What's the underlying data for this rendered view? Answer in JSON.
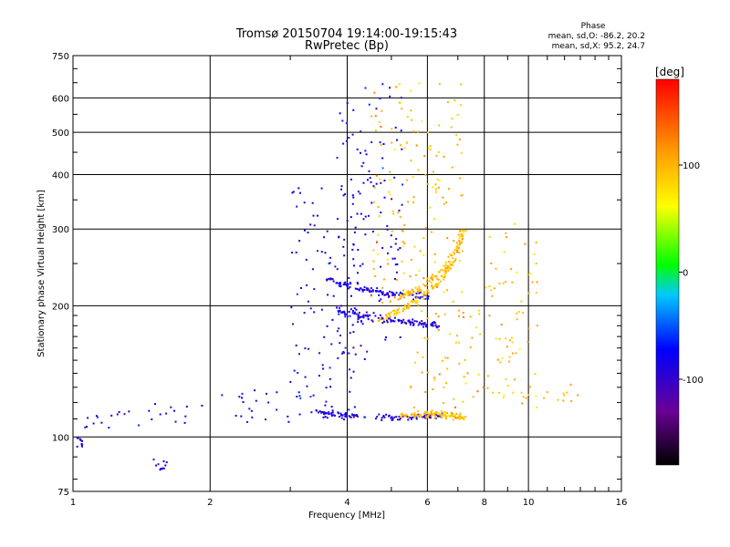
{
  "chart_data": {
    "type": "scatter",
    "title": "Tromsø 20150704 19:14:00-19:15:43",
    "subtitle": "RwPretec (Bp)",
    "xlabel": "Frequency [MHz]",
    "ylabel": "Stationary phase Virtual Height [km]",
    "x_scale": "log",
    "y_scale": "log",
    "xlim": [
      1,
      16
    ],
    "ylim": [
      75,
      750
    ],
    "grid": true,
    "xticks": [
      {
        "value": 1,
        "label": "1"
      },
      {
        "value": 2,
        "label": "2"
      },
      {
        "value": 4,
        "label": "4"
      },
      {
        "value": 6,
        "label": "6"
      },
      {
        "value": 8,
        "label": "8"
      },
      {
        "value": 10,
        "label": "10"
      },
      {
        "value": 16,
        "label": "16"
      }
    ],
    "yticks": [
      {
        "value": 75,
        "label": "75"
      },
      {
        "value": 100,
        "label": "100"
      },
      {
        "value": 200,
        "label": "200"
      },
      {
        "value": 300,
        "label": "300"
      },
      {
        "value": 400,
        "label": "400"
      },
      {
        "value": 500,
        "label": "500"
      },
      {
        "value": 600,
        "label": "600"
      },
      {
        "value": 750,
        "label": "750"
      }
    ],
    "stats": {
      "heading": "Phase",
      "line_o": "mean, sd,O: -86.2, 20.2",
      "line_x": "mean, sd,X:  95.2, 24.7"
    },
    "colorbar": {
      "label": "[deg]",
      "range": [
        -180,
        180
      ],
      "ticks": [
        {
          "value": 100,
          "label": "100"
        },
        {
          "value": 0,
          "label": "0"
        },
        {
          "value": -100,
          "label": "-100"
        }
      ]
    },
    "series": [
      {
        "mode": "O",
        "phase_mean": -86.2,
        "regions": [
          {
            "x": [
              1.0,
              1.3
            ],
            "y": [
              105,
              115
            ]
          },
          {
            "x": [
              1.3,
              2.0
            ],
            "y": [
              106,
              120
            ]
          },
          {
            "x": [
              2.0,
              3.0
            ],
            "y": [
              108,
              130
            ]
          },
          {
            "x": [
              3.0,
              4.3
            ],
            "y": [
              110,
              380
            ]
          },
          {
            "x": [
              3.8,
              5.3
            ],
            "y": [
              150,
              650
            ]
          },
          {
            "x": [
              1.5,
              1.62
            ],
            "y": [
              84,
              90
            ]
          },
          {
            "x": [
              1.02,
              1.05
            ],
            "y": [
              95,
              100
            ]
          }
        ],
        "traces": [
          {
            "x": [
              3.6,
              4.2,
              5.0,
              6.0
            ],
            "y": [
              230,
              220,
              212,
              210
            ]
          },
          {
            "x": [
              3.8,
              4.5,
              5.5,
              6.4
            ],
            "y": [
              195,
              188,
              183,
              180
            ]
          },
          {
            "x": [
              3.4,
              4.0,
              5.0,
              6.5
            ],
            "y": [
              114,
              112,
              111,
              112
            ]
          }
        ]
      },
      {
        "mode": "X",
        "phase_mean": 95.2,
        "regions": [
          {
            "x": [
              4.5,
              7.2
            ],
            "y": [
              200,
              650
            ]
          },
          {
            "x": [
              5.5,
              8.0
            ],
            "y": [
              110,
              200
            ]
          },
          {
            "x": [
              8.0,
              10.5
            ],
            "y": [
              115,
              310
            ]
          },
          {
            "x": [
              10.0,
              13.0
            ],
            "y": [
              120,
              135
            ]
          }
        ],
        "traces": [
          {
            "x": [
              5.0,
              5.8,
              6.5,
              7.0,
              7.2
            ],
            "y": [
              205,
              220,
              245,
              270,
              300
            ]
          },
          {
            "x": [
              4.7,
              5.5,
              6.3,
              6.9
            ],
            "y": [
              185,
              200,
              225,
              255
            ]
          },
          {
            "x": [
              5.2,
              6.0,
              6.8,
              7.3
            ],
            "y": [
              112,
              113,
              112,
              111
            ]
          }
        ]
      }
    ]
  }
}
